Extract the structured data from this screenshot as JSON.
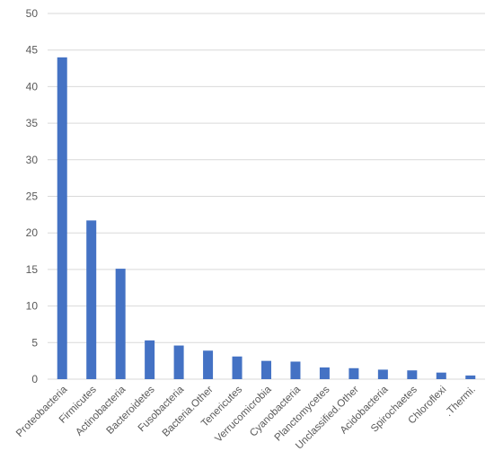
{
  "chart_data": {
    "type": "bar",
    "title": "",
    "xlabel": "",
    "ylabel": "",
    "ylim": [
      0,
      50
    ],
    "yticks": [
      "0",
      "5",
      "10",
      "15",
      "20",
      "25",
      "30",
      "35",
      "40",
      "45",
      "50"
    ],
    "grid": true,
    "legend": "none",
    "bar_color": "#4472c4",
    "grid_color": "#d9d9d9",
    "categories": [
      "Proteobacteria",
      "Firmicutes",
      "Actinobacteria",
      "Bacteroidetes",
      "Fusobacteria",
      "Bacteria.Other",
      "Tenericutes",
      "Verrucomicrobia",
      "Cyanobacteria",
      "Planctomycetes",
      "Unclassified.Other",
      "Acidobacteria",
      "Spirochaetes",
      "Chloroflexi",
      ".Thermi."
    ],
    "values": [
      44,
      21.7,
      15.1,
      5.3,
      4.6,
      3.9,
      3.1,
      2.5,
      2.4,
      1.6,
      1.5,
      1.3,
      1.2,
      0.9,
      0.5
    ]
  }
}
